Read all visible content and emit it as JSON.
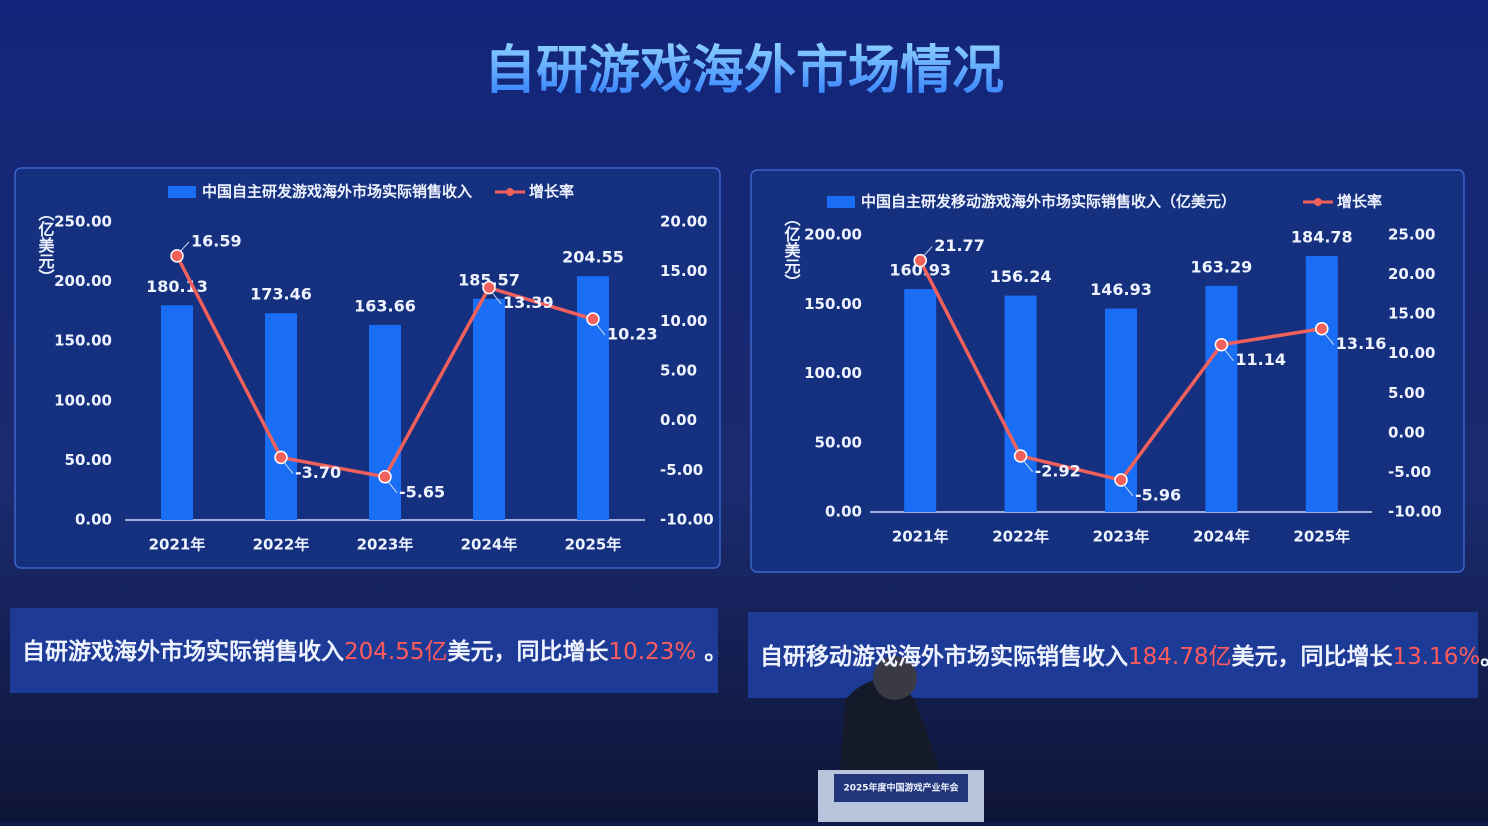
{
  "title": "自研游戏海外市场情况",
  "chart_data": [
    {
      "type": "bar",
      "categories": [
        "2021年",
        "2022年",
        "2023年",
        "2024年",
        "2025年"
      ],
      "y_label": "（亿美元）",
      "ylim": [
        0,
        250
      ],
      "yticks": [
        {
          "value": 0,
          "label": "0.00"
        },
        {
          "value": 50,
          "label": "50.00"
        },
        {
          "value": 100,
          "label": "100.00"
        },
        {
          "value": 150,
          "label": "150.00"
        },
        {
          "value": 200,
          "label": "200.00"
        },
        {
          "value": 250,
          "label": "250.00"
        }
      ],
      "y2lim": [
        -10,
        20
      ],
      "y2ticks": [
        {
          "value": -10,
          "label": "-10.00"
        },
        {
          "value": -5,
          "label": "-5.00"
        },
        {
          "value": 0,
          "label": "0.00"
        },
        {
          "value": 5,
          "label": "5.00"
        },
        {
          "value": 10,
          "label": "10.00"
        },
        {
          "value": 15,
          "label": "15.00"
        },
        {
          "value": 20,
          "label": "20.00"
        }
      ],
      "series": [
        {
          "name": "中国自主研发游戏海外市场实际销售收入",
          "color": "#1a6ef5",
          "values": [
            180.13,
            173.46,
            163.66,
            185.57,
            204.55
          ]
        },
        {
          "name": "增长率",
          "type": "line",
          "axis": "y2",
          "color": "#f2605c",
          "values": [
            16.59,
            -3.7,
            -5.65,
            13.39,
            10.23
          ],
          "value_labels": [
            "16.59",
            "-3.70",
            "-5.65",
            "13.39",
            "10.23"
          ]
        }
      ]
    },
    {
      "type": "bar",
      "categories": [
        "2021年",
        "2022年",
        "2023年",
        "2024年",
        "2025年"
      ],
      "y_label": "（亿美元）",
      "ylim": [
        0,
        200
      ],
      "yticks": [
        {
          "value": 0,
          "label": "0.00"
        },
        {
          "value": 50,
          "label": "50.00"
        },
        {
          "value": 100,
          "label": "100.00"
        },
        {
          "value": 150,
          "label": "150.00"
        },
        {
          "value": 200,
          "label": "200.00"
        }
      ],
      "y2lim": [
        -10,
        25
      ],
      "y2ticks": [
        {
          "value": -10,
          "label": "-10.00"
        },
        {
          "value": -5,
          "label": "-5.00"
        },
        {
          "value": 0,
          "label": "0.00"
        },
        {
          "value": 5,
          "label": "5.00"
        },
        {
          "value": 10,
          "label": "10.00"
        },
        {
          "value": 15,
          "label": "15.00"
        },
        {
          "value": 20,
          "label": "20.00"
        },
        {
          "value": 25,
          "label": "25.00"
        }
      ],
      "series": [
        {
          "name": "中国自主研发移动游戏海外市场实际销售收入（亿美元）",
          "color": "#1a6ef5",
          "values": [
            160.93,
            156.24,
            146.93,
            163.29,
            184.78
          ]
        },
        {
          "name": "增长率",
          "type": "line",
          "axis": "y2",
          "color": "#f2605c",
          "values": [
            21.77,
            -2.92,
            -5.96,
            11.14,
            13.16
          ]
        }
      ]
    }
  ],
  "captions": [
    {
      "parts": [
        "自研游戏海外市场实际销售收入",
        "204.55亿",
        "美元，同比增长",
        "10.23%",
        " 。"
      ]
    },
    {
      "parts": [
        "自研移动游戏海外市场实际销售收入",
        "184.78亿",
        "美元，同比增长",
        "13.16%",
        "。"
      ]
    }
  ],
  "podium": "2025年度中国游戏产业年会"
}
